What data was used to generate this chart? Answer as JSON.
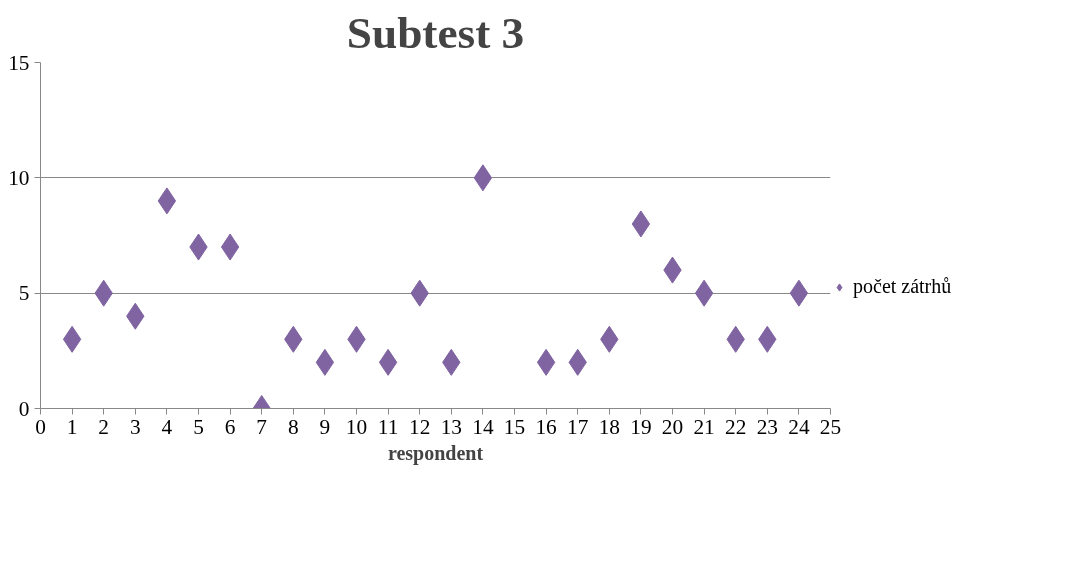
{
  "chart_data": {
    "type": "scatter",
    "title": "Subtest 3",
    "xlabel": "respondent",
    "x": [
      1,
      2,
      3,
      4,
      5,
      6,
      7,
      8,
      9,
      10,
      11,
      12,
      13,
      14,
      16,
      17,
      18,
      19,
      20,
      21,
      22,
      23,
      24
    ],
    "series": [
      {
        "name": "počet zátrhů",
        "color": "#8064a2",
        "values": [
          3,
          5,
          4,
          9,
          7,
          7,
          0,
          3,
          2,
          3,
          2,
          5,
          2,
          10,
          2,
          2,
          3,
          8,
          6,
          5,
          3,
          3,
          5
        ]
      }
    ],
    "xlim": [
      0,
      25
    ],
    "xticks": [
      0,
      1,
      2,
      3,
      4,
      5,
      6,
      7,
      8,
      9,
      10,
      11,
      12,
      13,
      14,
      15,
      16,
      17,
      18,
      19,
      20,
      21,
      22,
      23,
      24,
      25
    ],
    "ylim": [
      0,
      15
    ],
    "yticks": [
      0,
      5,
      10,
      15
    ],
    "grid": "y",
    "legend": "right",
    "marker": "diamond"
  }
}
